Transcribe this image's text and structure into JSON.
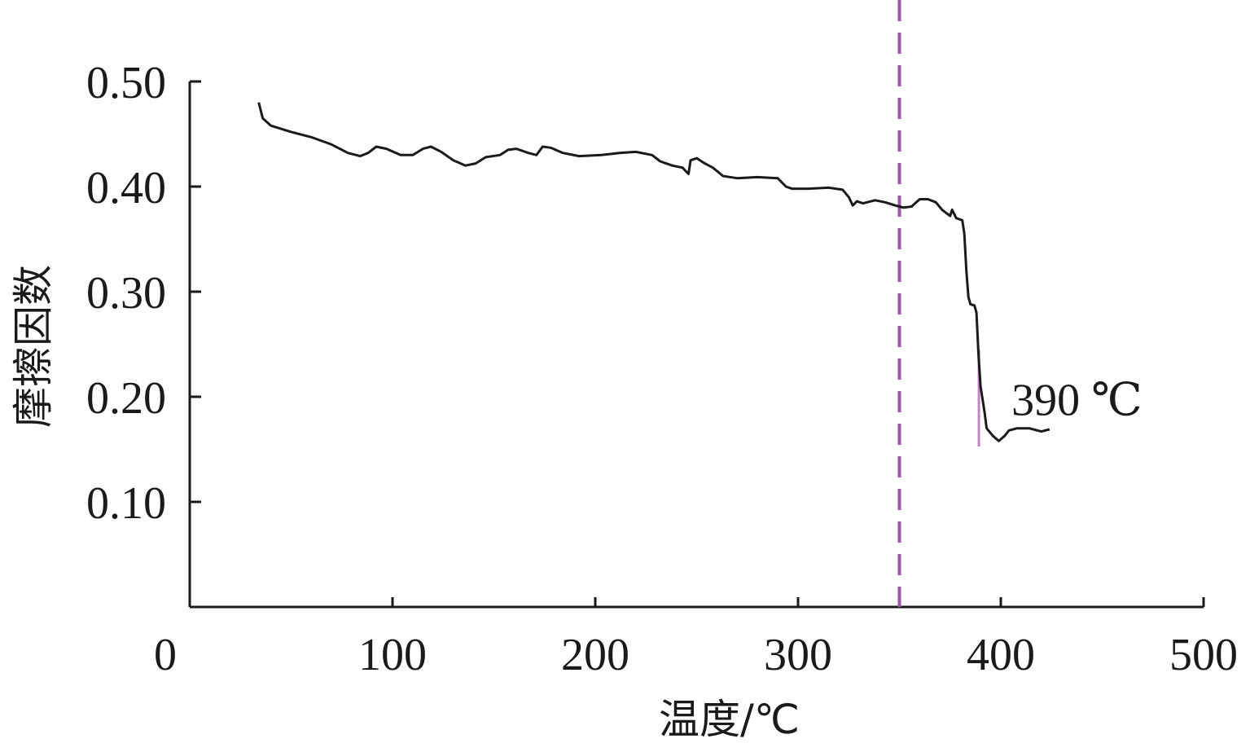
{
  "chart_data": {
    "type": "line",
    "title": "",
    "xlabel": "温度/℃",
    "ylabel": "摩擦因数",
    "xlim": [
      0,
      500
    ],
    "ylim": [
      0,
      0.5
    ],
    "x_ticks": [
      "0",
      "100",
      "200",
      "300",
      "400",
      "500"
    ],
    "y_ticks": [
      "0.10",
      "0.20",
      "0.30",
      "0.40",
      "0.50"
    ],
    "grid": false,
    "legend": "none",
    "series": [
      {
        "color": "#1a1a1a",
        "points": [
          [
            34,
            0.48
          ],
          [
            36,
            0.465
          ],
          [
            40,
            0.458
          ],
          [
            50,
            0.452
          ],
          [
            60,
            0.447
          ],
          [
            70,
            0.44
          ],
          [
            78,
            0.432
          ],
          [
            84,
            0.429
          ],
          [
            88,
            0.432
          ],
          [
            92,
            0.438
          ],
          [
            97,
            0.436
          ],
          [
            104,
            0.43
          ],
          [
            110,
            0.43
          ],
          [
            115,
            0.436
          ],
          [
            119,
            0.438
          ],
          [
            124,
            0.433
          ],
          [
            130,
            0.425
          ],
          [
            136,
            0.42
          ],
          [
            141,
            0.422
          ],
          [
            146,
            0.428
          ],
          [
            153,
            0.43
          ],
          [
            157,
            0.435
          ],
          [
            161,
            0.436
          ],
          [
            167,
            0.432
          ],
          [
            171,
            0.43
          ],
          [
            174,
            0.438
          ],
          [
            178,
            0.437
          ],
          [
            184,
            0.432
          ],
          [
            192,
            0.429
          ],
          [
            203,
            0.43
          ],
          [
            212,
            0.432
          ],
          [
            220,
            0.433
          ],
          [
            228,
            0.43
          ],
          [
            232,
            0.424
          ],
          [
            238,
            0.42
          ],
          [
            243,
            0.418
          ],
          [
            246,
            0.412
          ],
          [
            247,
            0.425
          ],
          [
            250,
            0.427
          ],
          [
            254,
            0.422
          ],
          [
            258,
            0.418
          ],
          [
            263,
            0.41
          ],
          [
            270,
            0.408
          ],
          [
            280,
            0.409
          ],
          [
            290,
            0.408
          ],
          [
            294,
            0.4
          ],
          [
            297,
            0.398
          ],
          [
            305,
            0.398
          ],
          [
            315,
            0.399
          ],
          [
            322,
            0.397
          ],
          [
            325,
            0.39
          ],
          [
            327,
            0.382
          ],
          [
            329,
            0.386
          ],
          [
            332,
            0.384
          ],
          [
            338,
            0.387
          ],
          [
            343,
            0.385
          ],
          [
            348,
            0.382
          ],
          [
            352,
            0.38
          ],
          [
            356,
            0.381
          ],
          [
            360,
            0.388
          ],
          [
            364,
            0.388
          ],
          [
            368,
            0.385
          ],
          [
            371,
            0.378
          ],
          [
            373,
            0.375
          ],
          [
            375,
            0.372
          ],
          [
            376,
            0.378
          ],
          [
            378,
            0.37
          ],
          [
            381,
            0.368
          ],
          [
            382,
            0.355
          ],
          [
            383,
            0.32
          ],
          [
            384,
            0.295
          ],
          [
            385,
            0.288
          ],
          [
            387,
            0.287
          ],
          [
            388,
            0.28
          ],
          [
            389,
            0.24
          ],
          [
            390,
            0.21
          ],
          [
            392,
            0.185
          ],
          [
            393,
            0.17
          ],
          [
            396,
            0.163
          ],
          [
            399,
            0.158
          ],
          [
            402,
            0.163
          ],
          [
            404,
            0.168
          ],
          [
            408,
            0.17
          ],
          [
            414,
            0.17
          ],
          [
            420,
            0.167
          ],
          [
            424,
            0.169
          ]
        ]
      }
    ],
    "reference_line": {
      "x": 350,
      "style": "dashed",
      "color": "#9b59a6"
    },
    "marker_line": {
      "x": 390,
      "y_range": [
        0.155,
        0.245
      ],
      "color": "#c084c4"
    },
    "annotation": {
      "text": "390 ℃",
      "x": 390,
      "y": 0.198
    }
  }
}
